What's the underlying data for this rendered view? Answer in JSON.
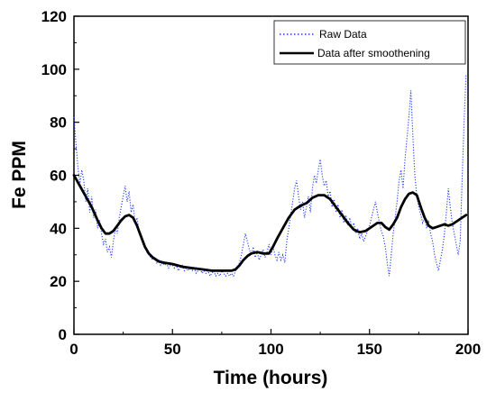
{
  "chart_data": {
    "type": "line",
    "xlabel": "Time (hours)",
    "ylabel": "Fe PPM",
    "xlim": [
      0,
      200
    ],
    "ylim": [
      0,
      120
    ],
    "xticks": [
      0,
      50,
      100,
      150,
      200
    ],
    "yticks": [
      0,
      20,
      40,
      60,
      80,
      100,
      120
    ],
    "grid": false,
    "legend_position": "top-right",
    "series": [
      {
        "name": "Raw Data",
        "style": "dotted",
        "color": "#1f3bff",
        "points": [
          [
            0,
            82
          ],
          [
            1,
            72
          ],
          [
            2,
            63
          ],
          [
            3,
            57
          ],
          [
            4,
            62
          ],
          [
            5,
            58
          ],
          [
            6,
            50
          ],
          [
            7,
            55
          ],
          [
            8,
            46
          ],
          [
            9,
            52
          ],
          [
            10,
            44
          ],
          [
            11,
            47
          ],
          [
            12,
            40
          ],
          [
            13,
            43
          ],
          [
            14,
            38
          ],
          [
            15,
            34
          ],
          [
            16,
            36
          ],
          [
            17,
            31
          ],
          [
            18,
            33
          ],
          [
            19,
            29
          ],
          [
            20,
            35
          ],
          [
            21,
            40
          ],
          [
            22,
            38
          ],
          [
            23,
            44
          ],
          [
            24,
            48
          ],
          [
            25,
            52
          ],
          [
            26,
            56
          ],
          [
            27,
            50
          ],
          [
            28,
            54
          ],
          [
            29,
            46
          ],
          [
            30,
            49
          ],
          [
            31,
            42
          ],
          [
            32,
            44
          ],
          [
            33,
            39
          ],
          [
            34,
            37
          ],
          [
            35,
            35
          ],
          [
            36,
            33
          ],
          [
            37,
            31
          ],
          [
            38,
            30
          ],
          [
            39,
            29
          ],
          [
            40,
            28
          ],
          [
            41,
            29
          ],
          [
            42,
            27
          ],
          [
            43,
            28
          ],
          [
            44,
            26
          ],
          [
            45,
            27
          ],
          [
            46,
            26
          ],
          [
            47,
            27
          ],
          [
            48,
            25
          ],
          [
            49,
            26
          ],
          [
            50,
            26
          ],
          [
            51,
            25
          ],
          [
            52,
            26
          ],
          [
            53,
            24
          ],
          [
            54,
            25
          ],
          [
            55,
            26
          ],
          [
            56,
            24
          ],
          [
            57,
            25
          ],
          [
            58,
            24
          ],
          [
            59,
            25
          ],
          [
            60,
            24
          ],
          [
            61,
            25
          ],
          [
            62,
            23
          ],
          [
            63,
            24
          ],
          [
            64,
            25
          ],
          [
            65,
            23
          ],
          [
            66,
            24
          ],
          [
            67,
            23
          ],
          [
            68,
            24
          ],
          [
            69,
            22
          ],
          [
            70,
            23
          ],
          [
            71,
            24
          ],
          [
            72,
            22
          ],
          [
            73,
            23
          ],
          [
            74,
            22
          ],
          [
            75,
            24
          ],
          [
            76,
            23
          ],
          [
            77,
            22
          ],
          [
            78,
            23
          ],
          [
            79,
            22
          ],
          [
            80,
            23
          ],
          [
            81,
            22
          ],
          [
            82,
            24
          ],
          [
            83,
            25
          ],
          [
            84,
            27
          ],
          [
            85,
            30
          ],
          [
            86,
            34
          ],
          [
            87,
            38
          ],
          [
            88,
            35
          ],
          [
            89,
            32
          ],
          [
            90,
            30
          ],
          [
            91,
            33
          ],
          [
            92,
            29
          ],
          [
            93,
            31
          ],
          [
            94,
            28
          ],
          [
            95,
            30
          ],
          [
            96,
            32
          ],
          [
            97,
            29
          ],
          [
            98,
            31
          ],
          [
            99,
            34
          ],
          [
            100,
            30
          ],
          [
            101,
            33
          ],
          [
            102,
            30
          ],
          [
            103,
            28
          ],
          [
            104,
            31
          ],
          [
            105,
            28
          ],
          [
            106,
            30
          ],
          [
            107,
            27
          ],
          [
            108,
            35
          ],
          [
            109,
            40
          ],
          [
            110,
            45
          ],
          [
            111,
            50
          ],
          [
            112,
            55
          ],
          [
            113,
            58
          ],
          [
            114,
            52
          ],
          [
            115,
            47
          ],
          [
            116,
            50
          ],
          [
            117,
            44
          ],
          [
            118,
            48
          ],
          [
            119,
            52
          ],
          [
            120,
            46
          ],
          [
            121,
            55
          ],
          [
            122,
            60
          ],
          [
            123,
            57
          ],
          [
            124,
            62
          ],
          [
            125,
            66
          ],
          [
            126,
            60
          ],
          [
            127,
            56
          ],
          [
            128,
            58
          ],
          [
            129,
            52
          ],
          [
            130,
            54
          ],
          [
            131,
            48
          ],
          [
            132,
            51
          ],
          [
            133,
            46
          ],
          [
            134,
            49
          ],
          [
            135,
            44
          ],
          [
            136,
            47
          ],
          [
            137,
            42
          ],
          [
            138,
            45
          ],
          [
            139,
            41
          ],
          [
            140,
            44
          ],
          [
            141,
            40
          ],
          [
            142,
            42
          ],
          [
            143,
            38
          ],
          [
            144,
            40
          ],
          [
            145,
            36
          ],
          [
            146,
            38
          ],
          [
            147,
            35
          ],
          [
            148,
            37
          ],
          [
            149,
            39
          ],
          [
            150,
            41
          ],
          [
            151,
            44
          ],
          [
            152,
            47
          ],
          [
            153,
            50
          ],
          [
            154,
            46
          ],
          [
            155,
            42
          ],
          [
            156,
            39
          ],
          [
            157,
            37
          ],
          [
            158,
            33
          ],
          [
            159,
            27
          ],
          [
            160,
            22
          ],
          [
            161,
            30
          ],
          [
            162,
            38
          ],
          [
            163,
            44
          ],
          [
            164,
            50
          ],
          [
            165,
            58
          ],
          [
            166,
            62
          ],
          [
            167,
            55
          ],
          [
            168,
            66
          ],
          [
            169,
            74
          ],
          [
            170,
            82
          ],
          [
            171,
            92
          ],
          [
            172,
            75
          ],
          [
            173,
            60
          ],
          [
            174,
            52
          ],
          [
            175,
            48
          ],
          [
            176,
            45
          ],
          [
            177,
            42
          ],
          [
            178,
            44
          ],
          [
            179,
            40
          ],
          [
            180,
            43
          ],
          [
            181,
            38
          ],
          [
            182,
            35
          ],
          [
            183,
            30
          ],
          [
            184,
            27
          ],
          [
            185,
            24
          ],
          [
            186,
            28
          ],
          [
            187,
            32
          ],
          [
            188,
            38
          ],
          [
            189,
            46
          ],
          [
            190,
            55
          ],
          [
            191,
            48
          ],
          [
            192,
            42
          ],
          [
            193,
            38
          ],
          [
            194,
            34
          ],
          [
            195,
            30
          ],
          [
            196,
            35
          ],
          [
            197,
            58
          ],
          [
            198,
            80
          ],
          [
            199,
            98
          ]
        ]
      },
      {
        "name": "Data after smoothening",
        "style": "solid",
        "color": "#000000",
        "points": [
          [
            0,
            60
          ],
          [
            3,
            56
          ],
          [
            6,
            52
          ],
          [
            9,
            48
          ],
          [
            12,
            43
          ],
          [
            14,
            40
          ],
          [
            16,
            38
          ],
          [
            18,
            38
          ],
          [
            20,
            39
          ],
          [
            22,
            41
          ],
          [
            24,
            43
          ],
          [
            26,
            44.5
          ],
          [
            28,
            45
          ],
          [
            30,
            44
          ],
          [
            32,
            41
          ],
          [
            34,
            37
          ],
          [
            36,
            33
          ],
          [
            38,
            30.5
          ],
          [
            40,
            29
          ],
          [
            43,
            27.5
          ],
          [
            46,
            27
          ],
          [
            50,
            26.5
          ],
          [
            55,
            25.5
          ],
          [
            60,
            25
          ],
          [
            65,
            24.5
          ],
          [
            70,
            24
          ],
          [
            75,
            24
          ],
          [
            80,
            24
          ],
          [
            82,
            24.5
          ],
          [
            84,
            26
          ],
          [
            86,
            28
          ],
          [
            88,
            29.5
          ],
          [
            90,
            30.5
          ],
          [
            93,
            31
          ],
          [
            96,
            30.5
          ],
          [
            99,
            30.5
          ],
          [
            101,
            33
          ],
          [
            103,
            36
          ],
          [
            106,
            40
          ],
          [
            109,
            44
          ],
          [
            112,
            47
          ],
          [
            115,
            48.5
          ],
          [
            118,
            49.5
          ],
          [
            121,
            51.5
          ],
          [
            124,
            52.5
          ],
          [
            127,
            52.5
          ],
          [
            130,
            51
          ],
          [
            133,
            48
          ],
          [
            136,
            45
          ],
          [
            139,
            42
          ],
          [
            142,
            39.5
          ],
          [
            145,
            38.5
          ],
          [
            148,
            39
          ],
          [
            151,
            40.5
          ],
          [
            154,
            42
          ],
          [
            156,
            42
          ],
          [
            158,
            40.5
          ],
          [
            160,
            39.5
          ],
          [
            162,
            41.5
          ],
          [
            164,
            44
          ],
          [
            166,
            48
          ],
          [
            168,
            51
          ],
          [
            170,
            53
          ],
          [
            172,
            53.5
          ],
          [
            174,
            52.5
          ],
          [
            176,
            48
          ],
          [
            178,
            44
          ],
          [
            180,
            41
          ],
          [
            182,
            40
          ],
          [
            184,
            40.5
          ],
          [
            186,
            41
          ],
          [
            188,
            41.5
          ],
          [
            190,
            41
          ],
          [
            192,
            41.5
          ],
          [
            194,
            42.5
          ],
          [
            196,
            43.5
          ],
          [
            198,
            44.5
          ],
          [
            199,
            45
          ]
        ]
      }
    ]
  }
}
